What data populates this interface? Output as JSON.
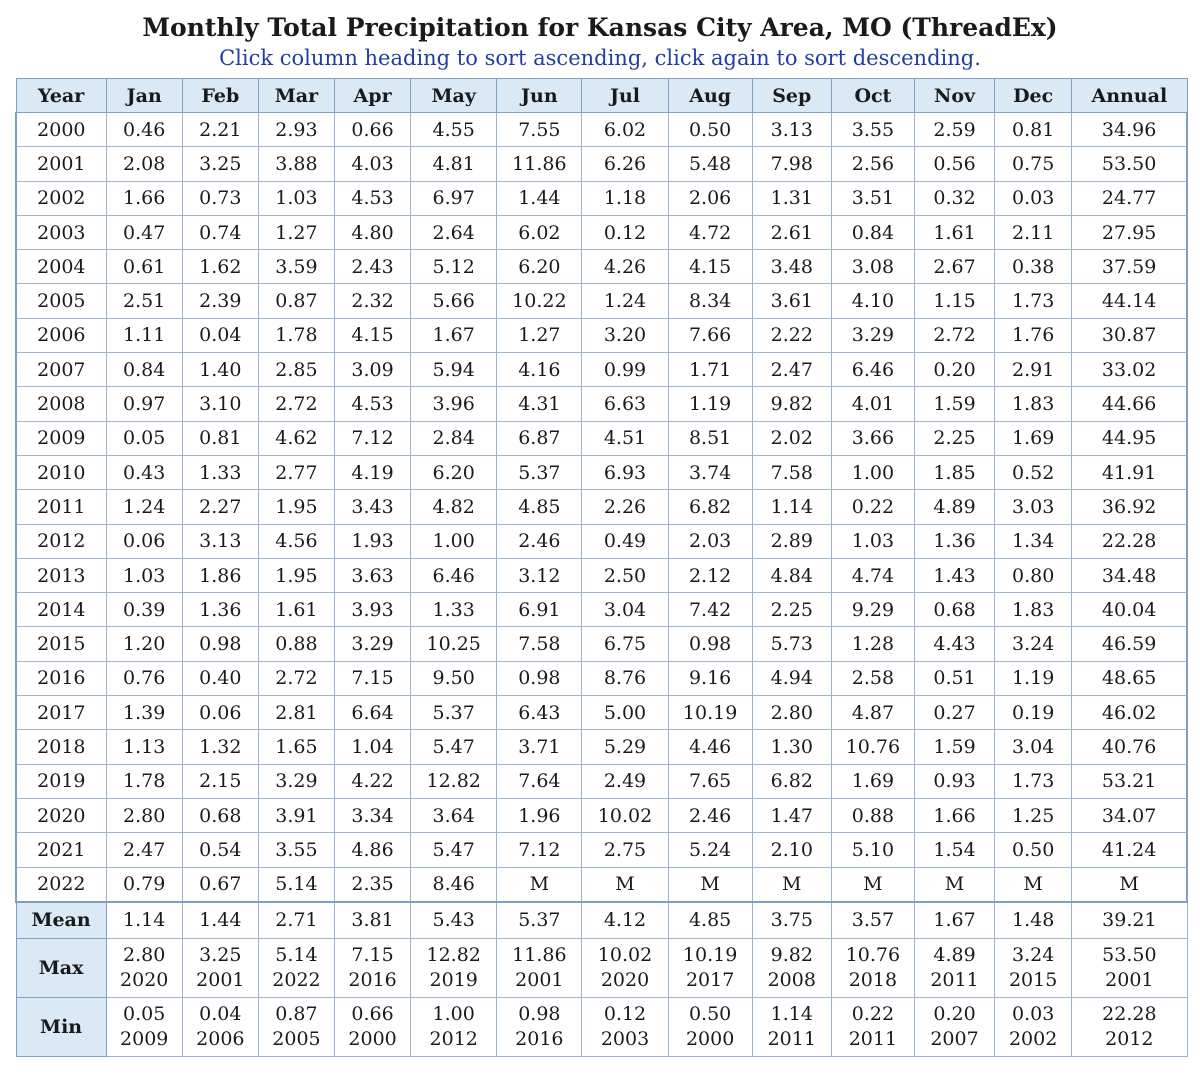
{
  "title": "Monthly Total Precipitation for Kansas City Area, MO (ThreadEx)",
  "subtitle": "Click column heading to sort ascending, click again to sort descending.",
  "headers": [
    "Year",
    "Jan",
    "Feb",
    "Mar",
    "Apr",
    "May",
    "Jun",
    "Jul",
    "Aug",
    "Sep",
    "Oct",
    "Nov",
    "Dec",
    "Annual"
  ],
  "rows": [
    [
      "2000",
      "0.46",
      "2.21",
      "2.93",
      "0.66",
      "4.55",
      "7.55",
      "6.02",
      "0.50",
      "3.13",
      "3.55",
      "2.59",
      "0.81",
      "34.96"
    ],
    [
      "2001",
      "2.08",
      "3.25",
      "3.88",
      "4.03",
      "4.81",
      "11.86",
      "6.26",
      "5.48",
      "7.98",
      "2.56",
      "0.56",
      "0.75",
      "53.50"
    ],
    [
      "2002",
      "1.66",
      "0.73",
      "1.03",
      "4.53",
      "6.97",
      "1.44",
      "1.18",
      "2.06",
      "1.31",
      "3.51",
      "0.32",
      "0.03",
      "24.77"
    ],
    [
      "2003",
      "0.47",
      "0.74",
      "1.27",
      "4.80",
      "2.64",
      "6.02",
      "0.12",
      "4.72",
      "2.61",
      "0.84",
      "1.61",
      "2.11",
      "27.95"
    ],
    [
      "2004",
      "0.61",
      "1.62",
      "3.59",
      "2.43",
      "5.12",
      "6.20",
      "4.26",
      "4.15",
      "3.48",
      "3.08",
      "2.67",
      "0.38",
      "37.59"
    ],
    [
      "2005",
      "2.51",
      "2.39",
      "0.87",
      "2.32",
      "5.66",
      "10.22",
      "1.24",
      "8.34",
      "3.61",
      "4.10",
      "1.15",
      "1.73",
      "44.14"
    ],
    [
      "2006",
      "1.11",
      "0.04",
      "1.78",
      "4.15",
      "1.67",
      "1.27",
      "3.20",
      "7.66",
      "2.22",
      "3.29",
      "2.72",
      "1.76",
      "30.87"
    ],
    [
      "2007",
      "0.84",
      "1.40",
      "2.85",
      "3.09",
      "5.94",
      "4.16",
      "0.99",
      "1.71",
      "2.47",
      "6.46",
      "0.20",
      "2.91",
      "33.02"
    ],
    [
      "2008",
      "0.97",
      "3.10",
      "2.72",
      "4.53",
      "3.96",
      "4.31",
      "6.63",
      "1.19",
      "9.82",
      "4.01",
      "1.59",
      "1.83",
      "44.66"
    ],
    [
      "2009",
      "0.05",
      "0.81",
      "4.62",
      "7.12",
      "2.84",
      "6.87",
      "4.51",
      "8.51",
      "2.02",
      "3.66",
      "2.25",
      "1.69",
      "44.95"
    ],
    [
      "2010",
      "0.43",
      "1.33",
      "2.77",
      "4.19",
      "6.20",
      "5.37",
      "6.93",
      "3.74",
      "7.58",
      "1.00",
      "1.85",
      "0.52",
      "41.91"
    ],
    [
      "2011",
      "1.24",
      "2.27",
      "1.95",
      "3.43",
      "4.82",
      "4.85",
      "2.26",
      "6.82",
      "1.14",
      "0.22",
      "4.89",
      "3.03",
      "36.92"
    ],
    [
      "2012",
      "0.06",
      "3.13",
      "4.56",
      "1.93",
      "1.00",
      "2.46",
      "0.49",
      "2.03",
      "2.89",
      "1.03",
      "1.36",
      "1.34",
      "22.28"
    ],
    [
      "2013",
      "1.03",
      "1.86",
      "1.95",
      "3.63",
      "6.46",
      "3.12",
      "2.50",
      "2.12",
      "4.84",
      "4.74",
      "1.43",
      "0.80",
      "34.48"
    ],
    [
      "2014",
      "0.39",
      "1.36",
      "1.61",
      "3.93",
      "1.33",
      "6.91",
      "3.04",
      "7.42",
      "2.25",
      "9.29",
      "0.68",
      "1.83",
      "40.04"
    ],
    [
      "2015",
      "1.20",
      "0.98",
      "0.88",
      "3.29",
      "10.25",
      "7.58",
      "6.75",
      "0.98",
      "5.73",
      "1.28",
      "4.43",
      "3.24",
      "46.59"
    ],
    [
      "2016",
      "0.76",
      "0.40",
      "2.72",
      "7.15",
      "9.50",
      "0.98",
      "8.76",
      "9.16",
      "4.94",
      "2.58",
      "0.51",
      "1.19",
      "48.65"
    ],
    [
      "2017",
      "1.39",
      "0.06",
      "2.81",
      "6.64",
      "5.37",
      "6.43",
      "5.00",
      "10.19",
      "2.80",
      "4.87",
      "0.27",
      "0.19",
      "46.02"
    ],
    [
      "2018",
      "1.13",
      "1.32",
      "1.65",
      "1.04",
      "5.47",
      "3.71",
      "5.29",
      "4.46",
      "1.30",
      "10.76",
      "1.59",
      "3.04",
      "40.76"
    ],
    [
      "2019",
      "1.78",
      "2.15",
      "3.29",
      "4.22",
      "12.82",
      "7.64",
      "2.49",
      "7.65",
      "6.82",
      "1.69",
      "0.93",
      "1.73",
      "53.21"
    ],
    [
      "2020",
      "2.80",
      "0.68",
      "3.91",
      "3.34",
      "3.64",
      "1.96",
      "10.02",
      "2.46",
      "1.47",
      "0.88",
      "1.66",
      "1.25",
      "34.07"
    ],
    [
      "2021",
      "2.47",
      "0.54",
      "3.55",
      "4.86",
      "5.47",
      "7.12",
      "2.75",
      "5.24",
      "2.10",
      "5.10",
      "1.54",
      "0.50",
      "41.24"
    ],
    [
      "2022",
      "0.79",
      "0.67",
      "5.14",
      "2.35",
      "8.46",
      "M",
      "M",
      "M",
      "M",
      "M",
      "M",
      "M",
      "M"
    ]
  ],
  "summary": {
    "mean": {
      "label": "Mean",
      "values": [
        "1.14",
        "1.44",
        "2.71",
        "3.81",
        "5.43",
        "5.37",
        "4.12",
        "4.85",
        "3.75",
        "3.57",
        "1.67",
        "1.48",
        "39.21"
      ]
    },
    "max": {
      "label": "Max",
      "values": [
        "2.80",
        "3.25",
        "5.14",
        "7.15",
        "12.82",
        "11.86",
        "10.02",
        "10.19",
        "9.82",
        "10.76",
        "4.89",
        "3.24",
        "53.50"
      ],
      "years": [
        "2020",
        "2001",
        "2022",
        "2016",
        "2019",
        "2001",
        "2020",
        "2017",
        "2008",
        "2018",
        "2011",
        "2015",
        "2001"
      ]
    },
    "min": {
      "label": "Min",
      "values": [
        "0.05",
        "0.04",
        "0.87",
        "0.66",
        "1.00",
        "0.98",
        "0.12",
        "0.50",
        "1.14",
        "0.22",
        "0.20",
        "0.03",
        "22.28"
      ],
      "years": [
        "2009",
        "2006",
        "2005",
        "2000",
        "2012",
        "2016",
        "2003",
        "2000",
        "2011",
        "2011",
        "2007",
        "2002",
        "2012"
      ]
    }
  }
}
